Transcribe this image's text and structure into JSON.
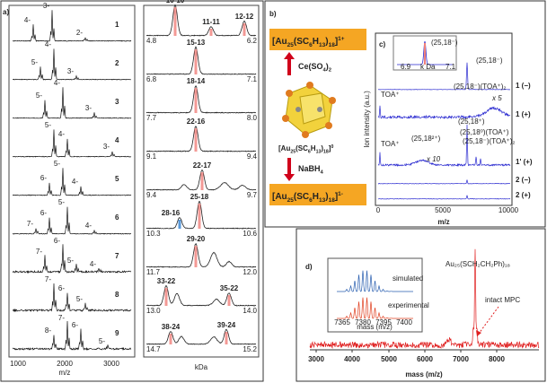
{
  "panel_a": {
    "label": "a)",
    "left": {
      "rows": [
        {
          "name": "1",
          "peaks": [
            "4-",
            "3-",
            "2-"
          ]
        },
        {
          "name": "2",
          "peaks": [
            "5-",
            "4-",
            "3-"
          ]
        },
        {
          "name": "3",
          "peaks": [
            "5-",
            "4-",
            "3-"
          ]
        },
        {
          "name": "4",
          "peaks": [
            "5-",
            "4-",
            "3-"
          ]
        },
        {
          "name": "5",
          "peaks": [
            "6-",
            "5-",
            "4-"
          ]
        },
        {
          "name": "6",
          "peaks": [
            "7-",
            "6-",
            "5-",
            "4-"
          ]
        },
        {
          "name": "7",
          "peaks": [
            "7-",
            "6-",
            "5-",
            "4-"
          ]
        },
        {
          "name": "8",
          "peaks": [
            "7-",
            "6-",
            "5-"
          ]
        },
        {
          "name": "9",
          "peaks": [
            "8-",
            "7-",
            "6-",
            "5-"
          ]
        }
      ],
      "xticks": [
        "1000",
        "2000",
        "3000"
      ],
      "xlabel": "m/z"
    },
    "right": {
      "rows": [
        {
          "peaks": [
            "10-10",
            "11-11",
            "12-12"
          ],
          "min": "4.8",
          "max": "6.2"
        },
        {
          "peaks": [
            "15-13"
          ],
          "min": "6.8",
          "max": "7.1"
        },
        {
          "peaks": [
            "18-14"
          ],
          "min": "7.7",
          "max": "8.0"
        },
        {
          "peaks": [
            "22-16"
          ],
          "min": "9.1",
          "max": "9.4"
        },
        {
          "peaks": [
            "22-17"
          ],
          "min": "9.4",
          "max": "9.7"
        },
        {
          "peaks": [
            "25-18",
            "28-16"
          ],
          "min": "10.3",
          "max": "10.6"
        },
        {
          "peaks": [
            "29-20"
          ],
          "min": "11.7",
          "max": "12.0"
        },
        {
          "peaks": [
            "33-22",
            "35-22"
          ],
          "min": "13.0",
          "max": "14.0"
        },
        {
          "peaks": [
            "38-24",
            "39-24"
          ],
          "min": "14.7",
          "max": "15.2"
        }
      ],
      "xlabel": "kDa"
    }
  },
  "panel_b": {
    "label": "b)",
    "top": [
      "[Au",
      "25",
      "(SC",
      "6",
      "H",
      "13",
      ")",
      "18",
      "]",
      "1+"
    ],
    "middle": [
      "[Au",
      "25",
      "(SC",
      "6",
      "H",
      "13",
      ")",
      "18",
      "]",
      "0"
    ],
    "bottom": [
      "[Au",
      "25",
      "(SC",
      "6",
      "H",
      "13",
      ")",
      "18",
      "]",
      "1-"
    ],
    "oxidant": [
      "Ce(SO",
      "4",
      ")",
      "2"
    ],
    "reductant": [
      "NaBH",
      "4"
    ]
  },
  "panel_c": {
    "label": "c)",
    "inset": {
      "peak": "(25,18⁻)",
      "xmin": "6.9",
      "xlabel": "k Da",
      "xmax": "7.1"
    },
    "annotations": [
      "(25,18⁻)",
      "(25,18⁻)(TOA⁺)₂",
      "x 5",
      "TOA⁺",
      "(25,18²⁺)",
      "(25,18⁺)",
      "(25,18⁰)(TOA⁺)",
      "(25,18⁻)(TOA⁺)₂",
      "x 10",
      "TOA⁺"
    ],
    "rows": [
      "1 (−)",
      "1 (+)",
      "1' (+)",
      "2 (−)",
      "2 (+)"
    ],
    "ylabel": "Ion intensity (a.u.)",
    "xticks": [
      "0",
      "5000",
      "10000"
    ],
    "xlabel": "m/z"
  },
  "panel_d": {
    "label": "d)",
    "formula": "Au₂₅(SCH₂CH₂Ph)₁₈",
    "annotation": "intact MPC",
    "inset": {
      "simulated": "simulated",
      "experimental": "experimental",
      "xticks": [
        "7365",
        "7380",
        "7395",
        "7400"
      ],
      "xlabel": "mass (m/z)"
    },
    "xticks": [
      "3000",
      "4000",
      "5000",
      "6000",
      "7000",
      "8000"
    ],
    "xlabel": "mass (m/z)"
  }
}
